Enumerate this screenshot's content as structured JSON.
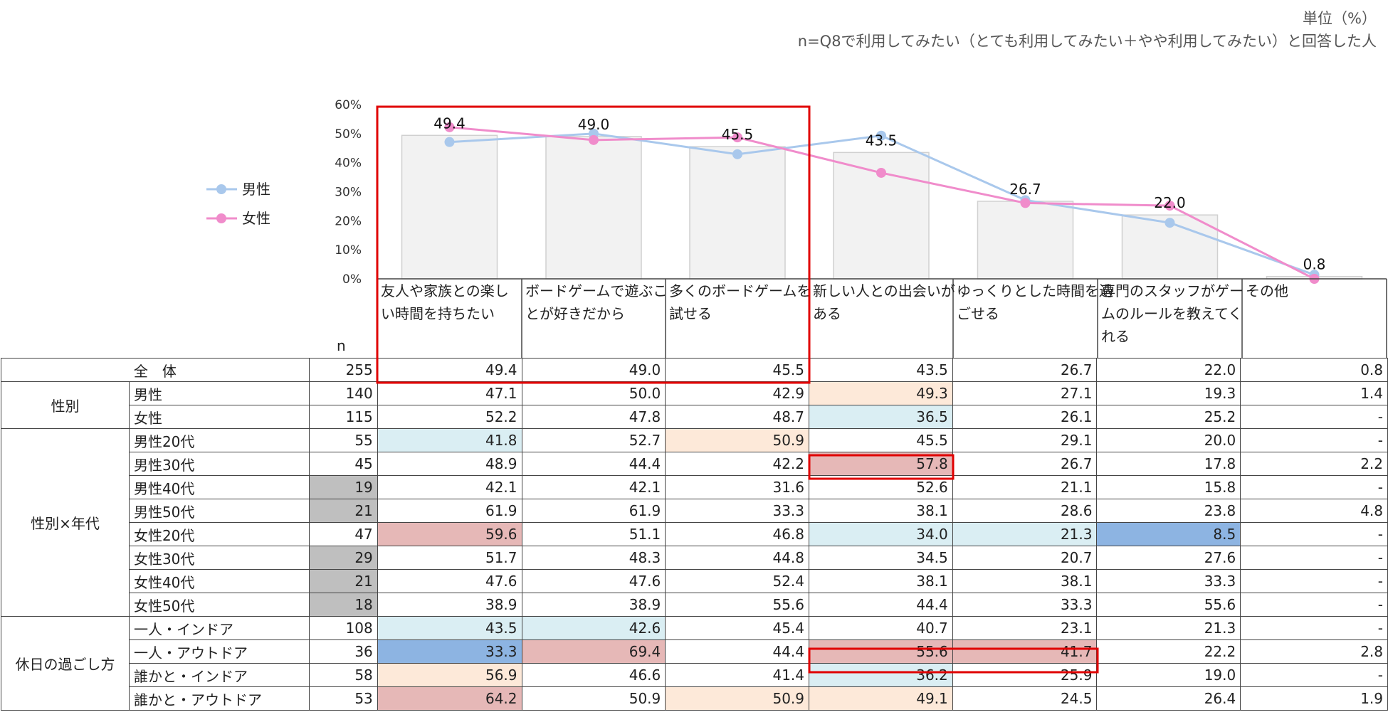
{
  "notes": {
    "unit": "単位（%）",
    "n_definition": "n=Q8で利用してみたい（とても利用してみたい＋やや利用してみたい）と回答した人"
  },
  "chart_data": {
    "type": "bar",
    "categories": [
      [
        "友人や家族との楽し",
        "い時間を持ちたい"
      ],
      [
        "ボードゲームで遊ぶこ",
        "とが好きだから"
      ],
      [
        "多くのボードゲームを",
        "試せる"
      ],
      [
        "新しい人との出会いが",
        "ある"
      ],
      [
        "ゆっくりとした時間を過",
        "ごせる"
      ],
      [
        "専門のスタッフがゲー",
        "ムのルールを教えてく",
        "れる"
      ],
      [
        "その他"
      ]
    ],
    "ylim": [
      0,
      60
    ],
    "yticks": [
      "60%",
      "50%",
      "40%",
      "30%",
      "20%",
      "10%",
      "0%"
    ],
    "bar_values": [
      49.4,
      49.0,
      45.5,
      43.5,
      26.7,
      22.0,
      0.8
    ],
    "bar_labels": [
      "49.4",
      "49.0",
      "45.5",
      "43.5",
      "26.7",
      "22.0",
      "0.8"
    ],
    "series": [
      {
        "name": "男性",
        "color": "#a9c8ec",
        "values": [
          47.1,
          50.0,
          42.9,
          49.3,
          27.1,
          19.3,
          1.4
        ]
      },
      {
        "name": "女性",
        "color": "#f08ccb",
        "values": [
          52.2,
          47.8,
          48.7,
          36.5,
          26.1,
          25.2,
          0
        ]
      }
    ],
    "legend_position": "left",
    "highlight_color": "#e00000"
  },
  "table": {
    "n_header": "n",
    "rows": [
      {
        "group": "全　体",
        "label": "",
        "n": "255",
        "values": [
          "49.4",
          "49.0",
          "45.5",
          "43.5",
          "26.7",
          "22.0",
          "0.8"
        ],
        "colors": [
          "",
          "",
          "",
          "",
          "",
          "",
          ""
        ]
      },
      {
        "group": "性別",
        "label": "男性",
        "n": "140",
        "values": [
          "47.1",
          "50.0",
          "42.9",
          "49.3",
          "27.1",
          "19.3",
          "1.4"
        ],
        "colors": [
          "",
          "",
          "",
          "peach",
          "",
          "",
          ""
        ]
      },
      {
        "group": "",
        "label": "女性",
        "n": "115",
        "values": [
          "52.2",
          "47.8",
          "48.7",
          "36.5",
          "26.1",
          "25.2",
          "-"
        ],
        "colors": [
          "",
          "",
          "",
          "lblue",
          "",
          "",
          ""
        ]
      },
      {
        "group": "性別×年代",
        "label": "男性20代",
        "n": "55",
        "values": [
          "41.8",
          "52.7",
          "50.9",
          "45.5",
          "29.1",
          "20.0",
          "-"
        ],
        "colors": [
          "lblue",
          "",
          "peach",
          "",
          "",
          "",
          ""
        ]
      },
      {
        "group": "",
        "label": "男性30代",
        "n": "45",
        "values": [
          "48.9",
          "44.4",
          "42.2",
          "57.8",
          "26.7",
          "17.8",
          "2.2"
        ],
        "colors": [
          "",
          "",
          "",
          "red",
          "",
          "",
          ""
        ]
      },
      {
        "group": "",
        "label": "男性40代",
        "n": "19",
        "values": [
          "42.1",
          "42.1",
          "31.6",
          "52.6",
          "21.1",
          "15.8",
          "-"
        ],
        "colors": [
          "",
          "",
          "",
          "",
          "",
          "",
          ""
        ],
        "n_gray": true
      },
      {
        "group": "",
        "label": "男性50代",
        "n": "21",
        "values": [
          "61.9",
          "61.9",
          "33.3",
          "38.1",
          "28.6",
          "23.8",
          "4.8"
        ],
        "colors": [
          "",
          "",
          "",
          "",
          "",
          "",
          ""
        ],
        "n_gray": true
      },
      {
        "group": "",
        "label": "女性20代",
        "n": "47",
        "values": [
          "59.6",
          "51.1",
          "46.8",
          "34.0",
          "21.3",
          "8.5",
          "-"
        ],
        "colors": [
          "red",
          "",
          "",
          "lblue",
          "lblue",
          "blue",
          ""
        ]
      },
      {
        "group": "",
        "label": "女性30代",
        "n": "29",
        "values": [
          "51.7",
          "48.3",
          "44.8",
          "34.5",
          "20.7",
          "27.6",
          "-"
        ],
        "colors": [
          "",
          "",
          "",
          "",
          "",
          "",
          ""
        ],
        "n_gray": true
      },
      {
        "group": "",
        "label": "女性40代",
        "n": "21",
        "values": [
          "47.6",
          "47.6",
          "52.4",
          "38.1",
          "38.1",
          "33.3",
          "-"
        ],
        "colors": [
          "",
          "",
          "",
          "",
          "",
          "",
          ""
        ],
        "n_gray": true
      },
      {
        "group": "",
        "label": "女性50代",
        "n": "18",
        "values": [
          "38.9",
          "38.9",
          "55.6",
          "44.4",
          "33.3",
          "55.6",
          "-"
        ],
        "colors": [
          "",
          "",
          "",
          "",
          "",
          "",
          ""
        ],
        "n_gray": true
      },
      {
        "group": "休日の過ごし方",
        "label": "一人・インドア",
        "n": "108",
        "values": [
          "43.5",
          "42.6",
          "45.4",
          "40.7",
          "23.1",
          "21.3",
          "-"
        ],
        "colors": [
          "lblue",
          "lblue",
          "",
          "",
          "",
          "",
          ""
        ]
      },
      {
        "group": "",
        "label": "一人・アウトドア",
        "n": "36",
        "values": [
          "33.3",
          "69.4",
          "44.4",
          "55.6",
          "41.7",
          "22.2",
          "2.8"
        ],
        "colors": [
          "blue",
          "red",
          "",
          "red",
          "red",
          "",
          ""
        ]
      },
      {
        "group": "",
        "label": "誰かと・インドア",
        "n": "58",
        "values": [
          "56.9",
          "46.6",
          "41.4",
          "36.2",
          "25.9",
          "19.0",
          "-"
        ],
        "colors": [
          "peach",
          "",
          "",
          "lblue",
          "",
          "",
          ""
        ]
      },
      {
        "group": "",
        "label": "誰かと・アウトドア",
        "n": "53",
        "values": [
          "64.2",
          "50.9",
          "50.9",
          "49.1",
          "24.5",
          "26.4",
          "1.9"
        ],
        "colors": [
          "red",
          "",
          "peach",
          "peach",
          "",
          "",
          ""
        ]
      }
    ]
  }
}
